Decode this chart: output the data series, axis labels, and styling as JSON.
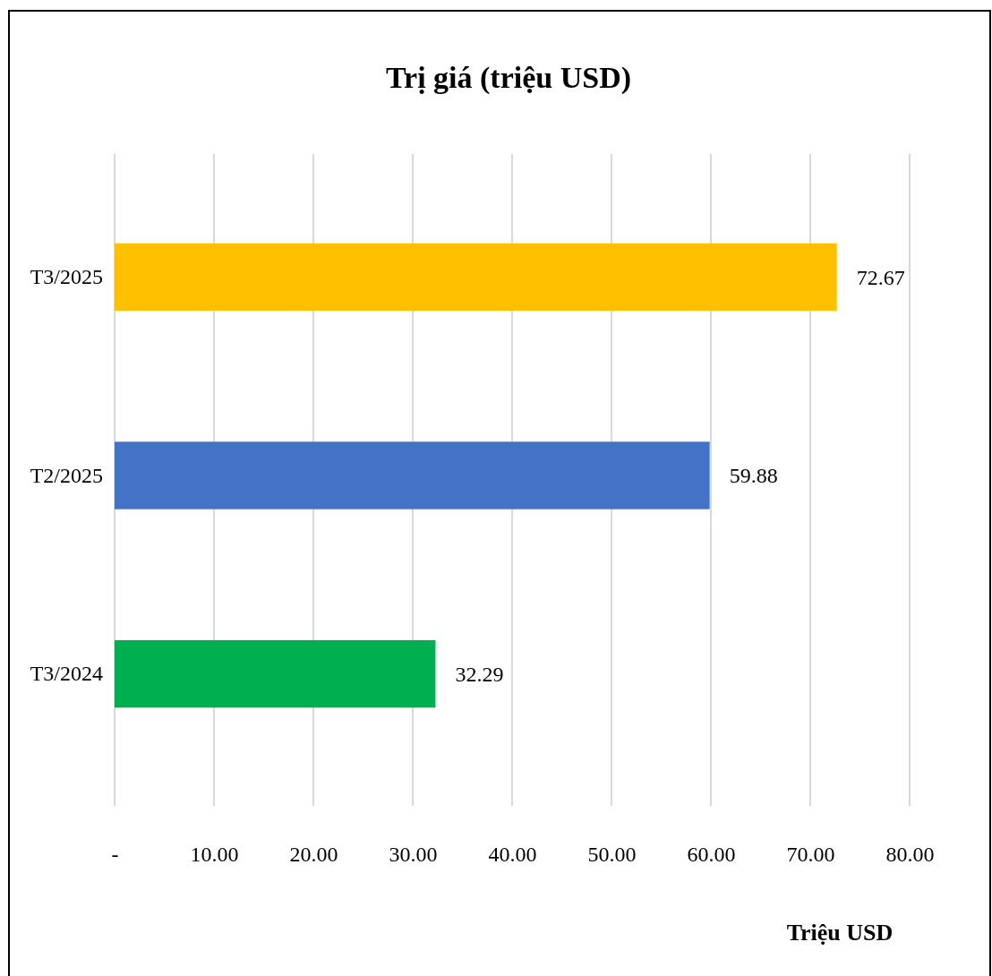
{
  "chart_data": {
    "type": "bar",
    "orientation": "horizontal",
    "title": "Trị giá (triệu USD)",
    "xlabel": "Triệu USD",
    "categories": [
      "T3/2025",
      "T2/2025",
      "T3/2024"
    ],
    "values": [
      72.67,
      59.88,
      32.29
    ],
    "colors": [
      "#ffc000",
      "#4472c4",
      "#00b050"
    ],
    "xlim": [
      0,
      80
    ],
    "xticks": [
      {
        "value": 0,
        "label": "-"
      },
      {
        "value": 10,
        "label": "10.00"
      },
      {
        "value": 20,
        "label": "20.00"
      },
      {
        "value": 30,
        "label": "30.00"
      },
      {
        "value": 40,
        "label": "40.00"
      },
      {
        "value": 50,
        "label": "50.00"
      },
      {
        "value": 60,
        "label": "60.00"
      },
      {
        "value": 70,
        "label": "70.00"
      },
      {
        "value": 80,
        "label": "80.00"
      }
    ],
    "grid": "x",
    "data_labels": true
  }
}
